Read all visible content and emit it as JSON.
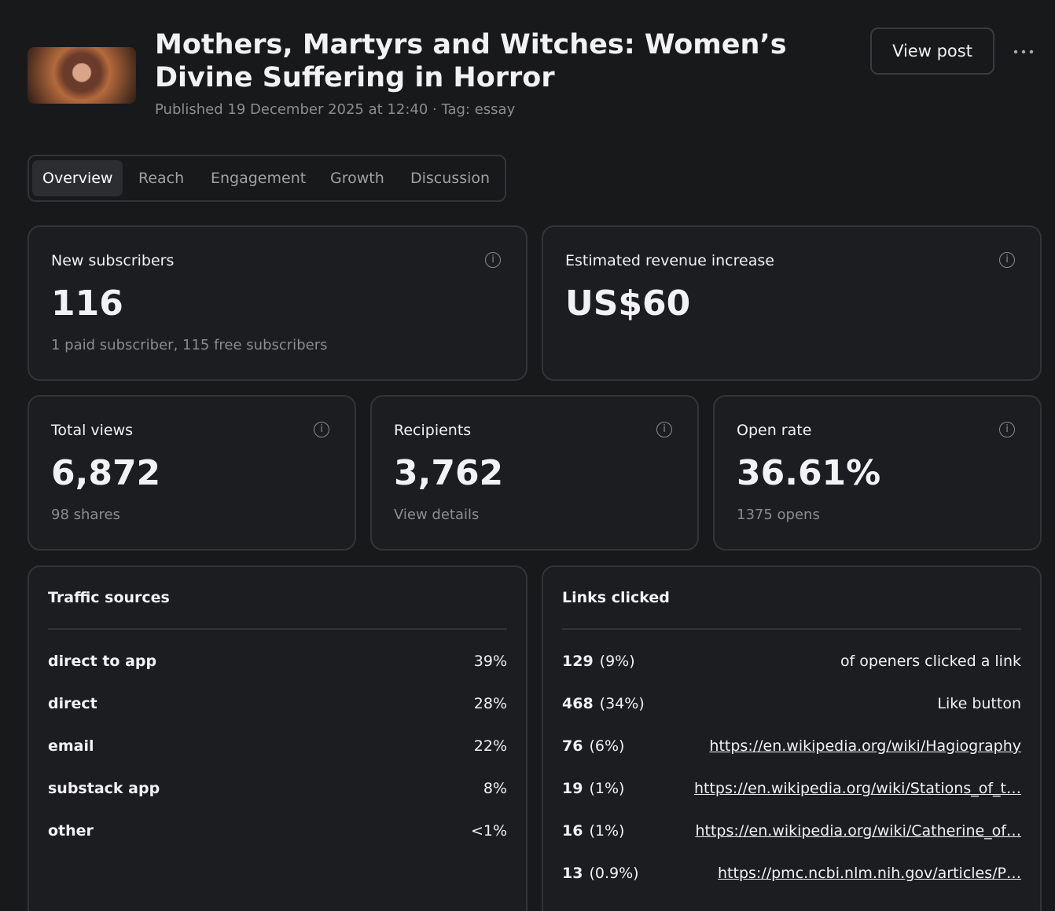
{
  "header": {
    "title": "Mothers, Martyrs and Witches: Women’s Divine Suffering in Horror",
    "meta": "Published 19 December 2025 at 12:40 · Tag: essay",
    "view_post": "View post"
  },
  "tabs": [
    "Overview",
    "Reach",
    "Engagement",
    "Growth",
    "Discussion"
  ],
  "stats": [
    {
      "label": "New subscribers",
      "value": "116",
      "note": "1 paid subscriber, 115 free subscribers"
    },
    {
      "label": "Estimated revenue increase",
      "value": "US$60"
    },
    {
      "label": "Total views",
      "value": "6,872",
      "note": "98 shares"
    },
    {
      "label": "Recipients",
      "value": "3,762",
      "note": "View details"
    },
    {
      "label": "Open rate",
      "value": "36.61%",
      "note": "1375 opens"
    }
  ],
  "traffic": {
    "title": "Traffic sources",
    "rows": [
      [
        "direct to app",
        "39%"
      ],
      [
        "direct",
        "28%"
      ],
      [
        "email",
        "22%"
      ],
      [
        "substack app",
        "8%"
      ],
      [
        "other",
        "<1%"
      ]
    ]
  },
  "links": {
    "title": "Links clicked",
    "rows": [
      [
        "129",
        "(9%)",
        "of openers clicked a link"
      ],
      [
        "468",
        "(34%)",
        "Like button"
      ],
      [
        "76",
        "(6%)",
        "https://en.wikipedia.org/wiki/Hagiography"
      ],
      [
        "19",
        "(1%)",
        "https://en.wikipedia.org/wiki/Stations_of_t…"
      ],
      [
        "16",
        "(1%)",
        "https://en.wikipedia.org/wiki/Catherine_of…"
      ],
      [
        "13",
        "(0.9%)",
        "https://pmc.ncbi.nlm.nih.gov/articles/P…"
      ]
    ]
  }
}
